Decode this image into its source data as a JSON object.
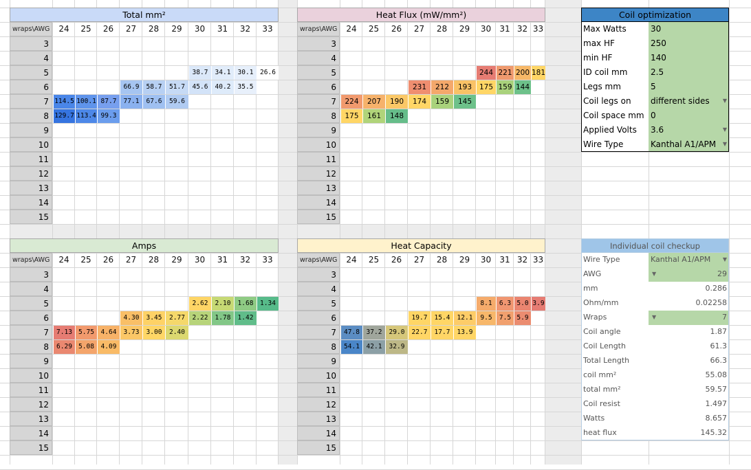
{
  "col_headers": [
    "24",
    "25",
    "26",
    "27",
    "28",
    "29",
    "30",
    "31",
    "32",
    "33"
  ],
  "row_headers": [
    "3",
    "4",
    "5",
    "6",
    "7",
    "8",
    "9",
    "10",
    "11",
    "12",
    "13",
    "14",
    "15"
  ],
  "corner_label": "wraps\\AWG",
  "colors": {
    "blue_title": "#c9daf8",
    "pink_title": "#ead1dc",
    "green_title": "#d9ead3",
    "yellow_title": "#fff2cc",
    "opt_title": "#3d85c6",
    "opt_bg": "#b6d7a8",
    "check_title": "#9fc5e8",
    "check_label_bg": "#ffffff",
    "red": "#e67c73",
    "green": "#57bb8a",
    "yellow": "#ffd666"
  },
  "panels": [
    {
      "id": "total-mm2",
      "title": "Total mm²",
      "kind": "blue",
      "values": {
        "5": [
          "",
          "",
          "",
          "",
          "",
          "",
          "38.7",
          "34.1",
          "30.1",
          "26.6"
        ],
        "6": [
          "",
          "",
          "",
          "66.9",
          "58.7",
          "51.7",
          "45.6",
          "40.2",
          "35.5",
          ""
        ],
        "7": [
          "114.5",
          "100.1",
          "87.7",
          "77.1",
          "67.6",
          "59.6",
          "",
          "",
          "",
          ""
        ],
        "8": [
          "129.7",
          "113.4",
          "99.3",
          "",
          "",
          "",
          "",
          "",
          "",
          ""
        ]
      },
      "colors": {
        "5": [
          "",
          "",
          "",
          "",
          "",
          "",
          "#dbe8f9",
          "#e1ecfa",
          "#e6effb",
          "#ffffff"
        ],
        "6": [
          "",
          "",
          "",
          "#a6c5f1",
          "#b7d0f3",
          "#c6daf5",
          "#d3e3f8",
          "#deebfa",
          "#e8f0fb",
          ""
        ],
        "7": [
          "#4a86e8",
          "#5f94eb",
          "#779fee",
          "#8ab1ef",
          "#9fc0f1",
          "#b0cbf2",
          "",
          "",
          "",
          ""
        ],
        "8": [
          "#3574e0",
          "#4d88e8",
          "#6b9ded",
          "",
          "",
          "",
          "",
          "",
          "",
          ""
        ]
      }
    },
    {
      "id": "heat-flux",
      "title": "Heat Flux (mW/mm²)",
      "kind": "pink",
      "values": {
        "5": [
          "",
          "",
          "",
          "",
          "",
          "",
          "244",
          "221",
          "200",
          "181"
        ],
        "6": [
          "",
          "",
          "",
          "231",
          "212",
          "193",
          "175",
          "159",
          "144",
          ""
        ],
        "7": [
          "224",
          "207",
          "190",
          "174",
          "159",
          "145",
          "",
          "",
          "",
          ""
        ],
        "8": [
          "175",
          "161",
          "148",
          "",
          "",
          "",
          "",
          "",
          "",
          ""
        ]
      },
      "colors": {
        "5": [
          "",
          "",
          "",
          "",
          "",
          "",
          "#e67c73",
          "#ef9a6e",
          "#f7b868",
          "#ffd666"
        ],
        "6": [
          "",
          "",
          "",
          "#ef8e70",
          "#f4a86b",
          "#f9c266",
          "#ffd666",
          "#a9d27c",
          "#6dc18a",
          ""
        ],
        "7": [
          "#f19a6e",
          "#f6b26b",
          "#fbc867",
          "#ffd666",
          "#a9d27c",
          "#6dc18a",
          "",
          "",
          "",
          ""
        ],
        "8": [
          "#ffd666",
          "#b0d47a",
          "#66bd8a",
          "",
          "",
          "",
          "",
          "",
          "",
          ""
        ]
      }
    },
    {
      "id": "amps",
      "title": "Amps",
      "kind": "green",
      "values": {
        "5": [
          "",
          "",
          "",
          "",
          "",
          "",
          "2.62",
          "2.10",
          "1.68",
          "1.34"
        ],
        "6": [
          "",
          "",
          "",
          "4.30",
          "3.45",
          "2.77",
          "2.22",
          "1.78",
          "1.42",
          ""
        ],
        "7": [
          "7.13",
          "5.75",
          "4.64",
          "3.73",
          "3.00",
          "2.40",
          "",
          "",
          "",
          ""
        ],
        "8": [
          "6.29",
          "5.08",
          "4.09",
          "",
          "",
          "",
          "",
          "",
          "",
          ""
        ]
      },
      "colors": {
        "5": [
          "",
          "",
          "",
          "",
          "",
          "",
          "#fed566",
          "#c6d974",
          "#8fcb84",
          "#57bb8a"
        ],
        "6": [
          "",
          "",
          "",
          "#f9bf67",
          "#fed266",
          "#f5d86b",
          "#b7d47a",
          "#82c787",
          "#60bd8a",
          ""
        ],
        "7": [
          "#e67c73",
          "#f29a6d",
          "#f7b268",
          "#fbc767",
          "#ffd666",
          "#dcd870",
          "",
          "",
          "",
          ""
        ],
        "8": [
          "#ea8870",
          "#f4a56b",
          "#f9bb67",
          "",
          "",
          "",
          "",
          "",
          "",
          ""
        ]
      }
    },
    {
      "id": "heat-capacity",
      "title": "Heat Capacity",
      "kind": "yellow",
      "values": {
        "5": [
          "",
          "",
          "",
          "",
          "",
          "",
          "8.1",
          "6.3",
          "5.0",
          "3.9"
        ],
        "6": [
          "",
          "",
          "",
          "19.7",
          "15.4",
          "12.1",
          "9.5",
          "7.5",
          "5.9",
          ""
        ],
        "7": [
          "47.8",
          "37.2",
          "29.0",
          "22.7",
          "17.7",
          "13.9",
          "",
          "",
          "",
          ""
        ],
        "8": [
          "54.1",
          "42.1",
          "32.9",
          "",
          "",
          "",
          "",
          "",
          "",
          ""
        ]
      },
      "colors": {
        "5": [
          "",
          "",
          "",
          "",
          "",
          "",
          "#f5ab6b",
          "#f09671",
          "#ea8570",
          "#e67c73"
        ],
        "6": [
          "",
          "",
          "",
          "#ffd666",
          "#ffd666",
          "#fdcc68",
          "#f7b76a",
          "#f1a06e",
          "#eb8c70",
          ""
        ],
        "7": [
          "#5b8dc3",
          "#a0a69c",
          "#d6c77a",
          "#ffd666",
          "#ffd666",
          "#ffd666",
          "",
          "",
          "",
          ""
        ],
        "8": [
          "#4a86c8",
          "#8ca0a6",
          "#bdb887",
          "",
          "",
          "",
          "",
          "",
          "",
          ""
        ]
      }
    }
  ],
  "optimization": {
    "title": "Coil optimization",
    "rows": [
      {
        "label": "Max Watts",
        "value": "30",
        "dropdown": false
      },
      {
        "label": "max HF",
        "value": "250",
        "dropdown": false
      },
      {
        "label": "min HF",
        "value": "140",
        "dropdown": false
      },
      {
        "label": "ID coil mm",
        "value": "2.5",
        "dropdown": false
      },
      {
        "label": "Legs mm",
        "value": "5",
        "dropdown": false
      },
      {
        "label": "Coil legs on",
        "value": "different sides",
        "dropdown": true
      },
      {
        "label": "Coil space mm",
        "value": "0",
        "dropdown": false
      },
      {
        "label": "Applied Volts",
        "value": "3.6",
        "dropdown": true
      },
      {
        "label": "Wire Type",
        "value": "Kanthal A1/APM",
        "dropdown": true
      }
    ]
  },
  "checkup": {
    "title": "Individual coil checkup",
    "rows": [
      {
        "label": "Wire Type",
        "value": "Kanthal A1/APM",
        "input": "right-dd"
      },
      {
        "label": "AWG",
        "value": "29",
        "input": "left-dd"
      },
      {
        "label": "mm",
        "value": "0.286",
        "input": ""
      },
      {
        "label": "Ohm/mm",
        "value": "0.02258",
        "input": ""
      },
      {
        "label": "Wraps",
        "value": "7",
        "input": "left-dd"
      },
      {
        "label": "Coil angle",
        "value": "1.87",
        "input": ""
      },
      {
        "label": "Coil Length",
        "value": "61.3",
        "input": ""
      },
      {
        "label": "Total Length",
        "value": "66.3",
        "input": ""
      },
      {
        "label": "coil mm²",
        "value": "55.08",
        "input": ""
      },
      {
        "label": "total mm²",
        "value": "59.57",
        "input": ""
      },
      {
        "label": "Coil resist",
        "value": "1.497",
        "input": ""
      },
      {
        "label": "Watts",
        "value": "8.657",
        "input": ""
      },
      {
        "label": "heat flux",
        "value": "145.32",
        "input": ""
      }
    ]
  }
}
